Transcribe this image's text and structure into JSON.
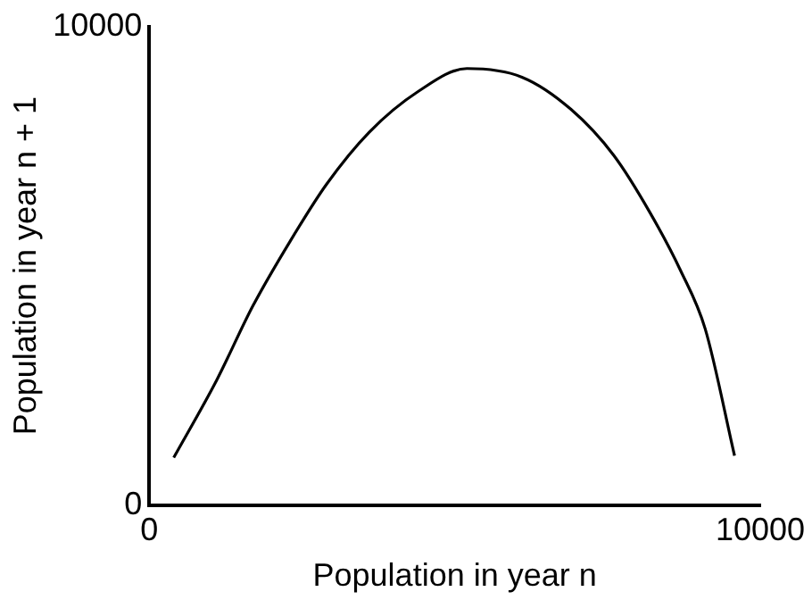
{
  "chart_data": {
    "type": "line",
    "xlabel": "Population in year n",
    "ylabel": "Population in year n + 1",
    "x": [
      400,
      1100,
      1700,
      2300,
      2900,
      3600,
      4400,
      5200,
      6100,
      6900,
      7600,
      8200,
      8700,
      9100,
      9580
    ],
    "series": [
      {
        "color": "#000000",
        "values": [
          990,
          2600,
          4170,
          5500,
          6700,
          7790,
          8640,
          9120,
          8940,
          8270,
          7310,
          6100,
          4890,
          3680,
          1030
        ]
      }
    ],
    "xlim": [
      0,
      10000
    ],
    "xticks": [
      0,
      10000
    ],
    "ylim": [
      0,
      10000
    ],
    "yticks": [
      0,
      10000
    ],
    "grid": false,
    "legend": false,
    "marker": "none",
    "line_style": "solid"
  }
}
